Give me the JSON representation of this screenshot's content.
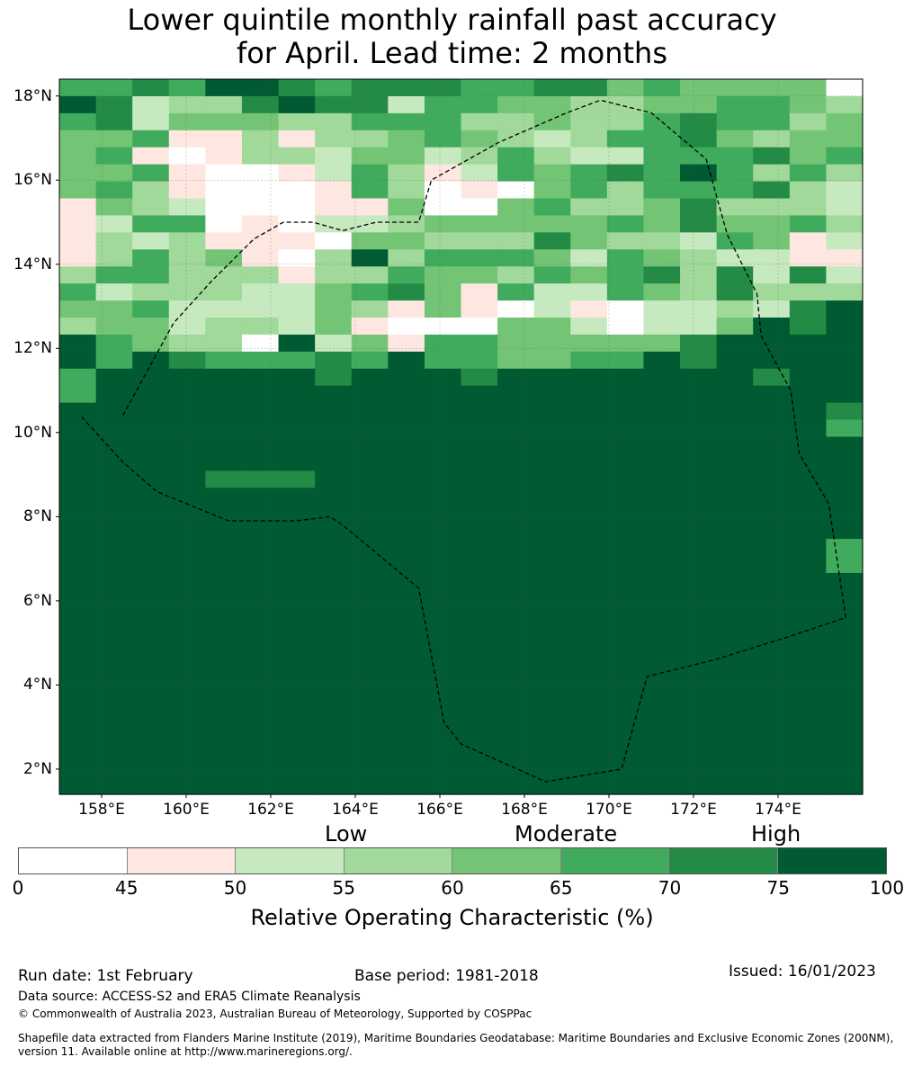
{
  "title_line1": "Lower quintile monthly rainfall past accuracy",
  "title_line2": "for April. Lead time: 2 months",
  "map": {
    "lat_labels": [
      "18°N",
      "16°N",
      "14°N",
      "12°N",
      "10°N",
      "8°N",
      "6°N",
      "4°N",
      "2°N"
    ],
    "lon_labels": [
      "158°E",
      "160°E",
      "162°E",
      "164°E",
      "166°E",
      "168°E",
      "170°E",
      "172°E",
      "174°E"
    ],
    "lat_values": [
      18,
      16,
      14,
      12,
      10,
      8,
      6,
      4,
      2
    ],
    "lon_values": [
      158,
      160,
      162,
      164,
      166,
      168,
      170,
      172,
      174
    ],
    "extent": {
      "lon_min": 157,
      "lon_max": 176,
      "lat_min": 1.4,
      "lat_max": 18.4
    },
    "grid_resolution_deg": 0.8,
    "note": "Values are ROC skill class index 0-7 per grid cell (row 0 = north).",
    "cell_classes": [
      "5565776566655664544440",
      "7623367662554433445543",
      "5624443355533433565534",
      "4451131334543235564344",
      "4510133244235322555645",
      "4451001253125456575353",
      "4531000153010453555632",
      "1432000114004533463332",
      "1255010223444445464453",
      "1323111044333643325412",
      "1353410373555425432211",
      "3553331335443545636262",
      "5233322456415225436333",
      "4452222431410210223267",
      "3442332410004420224767",
      "7543307241554444467777",
      "7576555657554455767777",
      "5777777677767777777677",
      "5777777777777777777777",
      "7777777777777777777776",
      "7777777777777777777775",
      "7777777777777777777777",
      "7777777777777777777777",
      "7777666777777777777777",
      "7777777777777777777777",
      "7777777777777777777777",
      "7777777777777777777777",
      "7777777777777777777775",
      "7777777777777777777775",
      "7777777777777777777777",
      "7777777777777777777777",
      "7777777777777777777777",
      "7777777777777777777777",
      "7777777777777777777777",
      "7777777777777777777777",
      "7777777777777777777777",
      "7777777777777777777777",
      "7777777777777777777777",
      "7777777777777777777777",
      "7777777777777777777777",
      "7777777777777777777777",
      "7777777777777777777777"
    ],
    "eez_boundary": [
      [
        158.5,
        10.4
      ],
      [
        159.7,
        12.6
      ],
      [
        160.6,
        13.6
      ],
      [
        161.6,
        14.6
      ],
      [
        162.3,
        15.0
      ],
      [
        163.0,
        15.0
      ],
      [
        163.7,
        14.8
      ],
      [
        164.5,
        15.0
      ],
      [
        165.5,
        15.0
      ],
      [
        165.8,
        16.0
      ],
      [
        167.4,
        16.9
      ],
      [
        169.0,
        17.6
      ],
      [
        169.8,
        17.9
      ],
      [
        171.0,
        17.6
      ],
      [
        172.3,
        16.5
      ],
      [
        172.8,
        14.7
      ],
      [
        173.5,
        13.3
      ],
      [
        173.6,
        12.3
      ],
      [
        174.3,
        11.0
      ],
      [
        174.5,
        9.5
      ],
      [
        175.2,
        8.3
      ],
      [
        175.6,
        5.6
      ],
      [
        174.1,
        5.1
      ],
      [
        172.5,
        4.6
      ],
      [
        170.9,
        4.2
      ],
      [
        170.3,
        2.0
      ],
      [
        168.5,
        1.7
      ],
      [
        166.5,
        2.6
      ],
      [
        166.1,
        3.1
      ],
      [
        165.5,
        6.3
      ],
      [
        163.7,
        7.8
      ],
      [
        163.4,
        8.0
      ],
      [
        162.6,
        7.9
      ],
      [
        161.0,
        7.9
      ],
      [
        159.3,
        8.6
      ],
      [
        158.5,
        9.3
      ],
      [
        157.5,
        10.4
      ]
    ]
  },
  "legend": {
    "categories": [
      "Low",
      "Moderate",
      "High"
    ],
    "colors": [
      "#ffffff",
      "#fee7e0",
      "#c7e9c0",
      "#a1d99b",
      "#74c476",
      "#41ab5d",
      "#238b45",
      "#005a32"
    ],
    "ticks": [
      "0",
      "45",
      "50",
      "55",
      "60",
      "65",
      "70",
      "75",
      "100"
    ],
    "title": "Relative Operating Characteristic (%)"
  },
  "footer": {
    "run_date": "Run date: 1st February",
    "base_period": "Base period: 1981-2018",
    "issued": "Issued: 16/01/2023",
    "data_source": "Data source: ACCESS-S2 and ERA5 Climate Reanalysis",
    "copyright": "© Commonwealth of Australia 2023, Australian Bureau of Meteorology, Supported by COSPPac",
    "shapefile_line1": "Shapefile data extracted from Flanders Marine Institute (2019), Maritime Boundaries Geodatabase: Maritime Boundaries and Exclusive Economic Zones (200NM),",
    "shapefile_line2": "version 11. Available online at http://www.marineregions.org/."
  }
}
